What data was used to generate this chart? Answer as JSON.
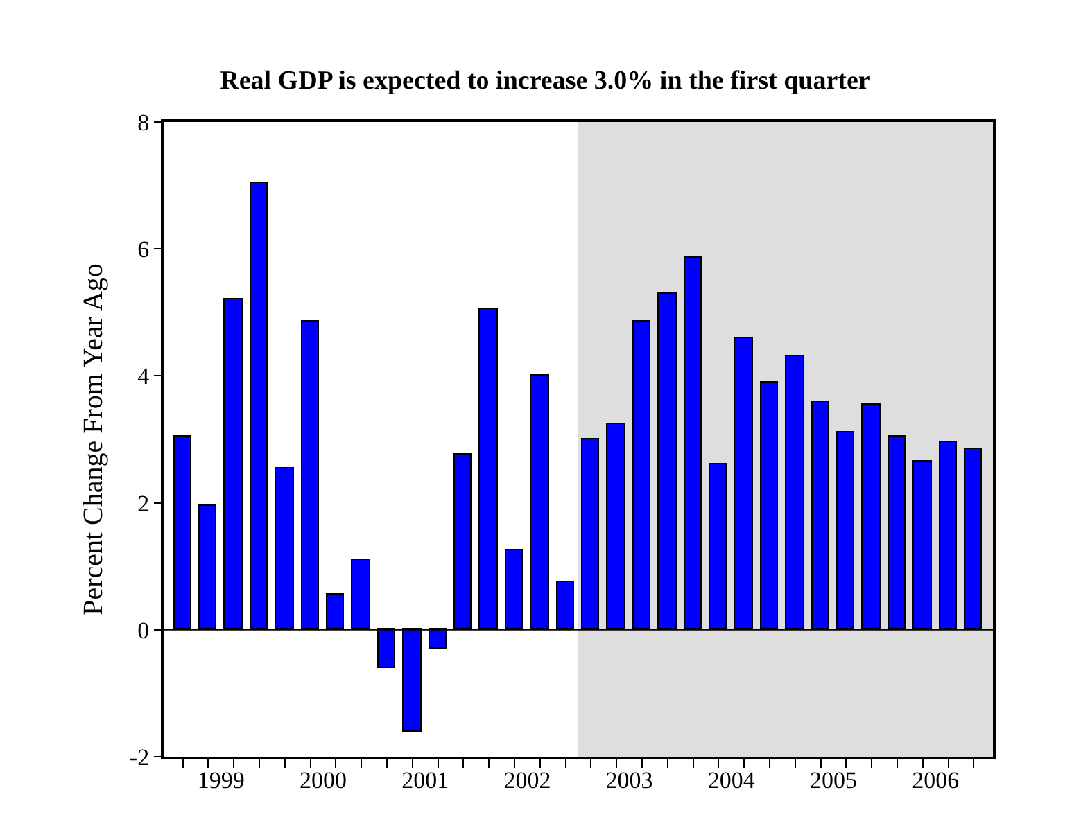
{
  "chart_data": {
    "type": "bar",
    "title": "Real GDP is expected to increase 3.0% in the first quarter",
    "ylabel": "Percent Change From Year Ago",
    "x": [
      1999,
      1999.25,
      1999.5,
      1999.75,
      2000,
      2000.25,
      2000.5,
      2000.75,
      2001,
      2001.25,
      2001.5,
      2001.75,
      2002,
      2002.25,
      2002.5,
      2002.75,
      2003,
      2003.25,
      2003.5,
      2003.75,
      2004,
      2004.25,
      2004.5,
      2004.75,
      2005,
      2005.25,
      2005.5,
      2005.75,
      2006,
      2006.25,
      2006.5,
      2006.75
    ],
    "series": [
      {
        "color": "#0000ff",
        "values": [
          3.05,
          1.95,
          5.2,
          7.05,
          2.55,
          4.85,
          0.55,
          1.1,
          -0.6,
          -1.6,
          -0.3,
          2.75,
          5.05,
          1.25,
          4.0,
          0.75,
          3.0,
          3.25,
          4.85,
          5.3,
          5.85,
          2.6,
          4.6,
          3.9,
          4.3,
          3.6,
          3.1,
          3.55,
          3.05,
          2.65,
          2.95,
          2.85
        ]
      }
    ],
    "xlim": [
      1998.8125,
      2006.9375
    ],
    "xticks": [
      {
        "value": 1999.375,
        "label": "1999"
      },
      {
        "value": 2000.375,
        "label": "2000"
      },
      {
        "value": 2001.375,
        "label": "2001"
      },
      {
        "value": 2002.375,
        "label": "2002"
      },
      {
        "value": 2003.375,
        "label": "2003"
      },
      {
        "value": 2004.375,
        "label": "2004"
      },
      {
        "value": 2005.375,
        "label": "2005"
      },
      {
        "value": 2006.375,
        "label": "2006"
      },
      {
        "value": 1999,
        "label": null
      },
      {
        "value": 1999.25,
        "label": null
      },
      {
        "value": 1999.5,
        "label": null
      },
      {
        "value": 1999.75,
        "label": null
      },
      {
        "value": 2000,
        "label": null
      },
      {
        "value": 2000.25,
        "label": null
      },
      {
        "value": 2000.5,
        "label": null
      },
      {
        "value": 2000.75,
        "label": null
      },
      {
        "value": 2001,
        "label": null
      },
      {
        "value": 2001.25,
        "label": null
      },
      {
        "value": 2001.5,
        "label": null
      },
      {
        "value": 2001.75,
        "label": null
      },
      {
        "value": 2002,
        "label": null
      },
      {
        "value": 2002.25,
        "label": null
      },
      {
        "value": 2002.5,
        "label": null
      },
      {
        "value": 2002.75,
        "label": null
      },
      {
        "value": 2003,
        "label": null
      },
      {
        "value": 2003.25,
        "label": null
      },
      {
        "value": 2003.5,
        "label": null
      },
      {
        "value": 2003.75,
        "label": null
      },
      {
        "value": 2004,
        "label": null
      },
      {
        "value": 2004.25,
        "label": null
      },
      {
        "value": 2004.5,
        "label": null
      },
      {
        "value": 2004.75,
        "label": null
      },
      {
        "value": 2005,
        "label": null
      },
      {
        "value": 2005.25,
        "label": null
      },
      {
        "value": 2005.5,
        "label": null
      },
      {
        "value": 2005.75,
        "label": null
      },
      {
        "value": 2006,
        "label": null
      },
      {
        "value": 2006.25,
        "label": null
      },
      {
        "value": 2006.5,
        "label": null
      },
      {
        "value": 2006.75,
        "label": null
      }
    ],
    "ylim": [
      -2,
      8
    ],
    "yticks": [
      -2,
      0,
      2,
      4,
      6,
      8
    ],
    "ref_lines": [
      {
        "axis": "y",
        "value": 0,
        "color": "#000000"
      }
    ],
    "bands": [
      {
        "axis": "x",
        "from": 2002.875,
        "to": 2006.9375,
        "color": "#dedede"
      }
    ],
    "grid": false
  }
}
